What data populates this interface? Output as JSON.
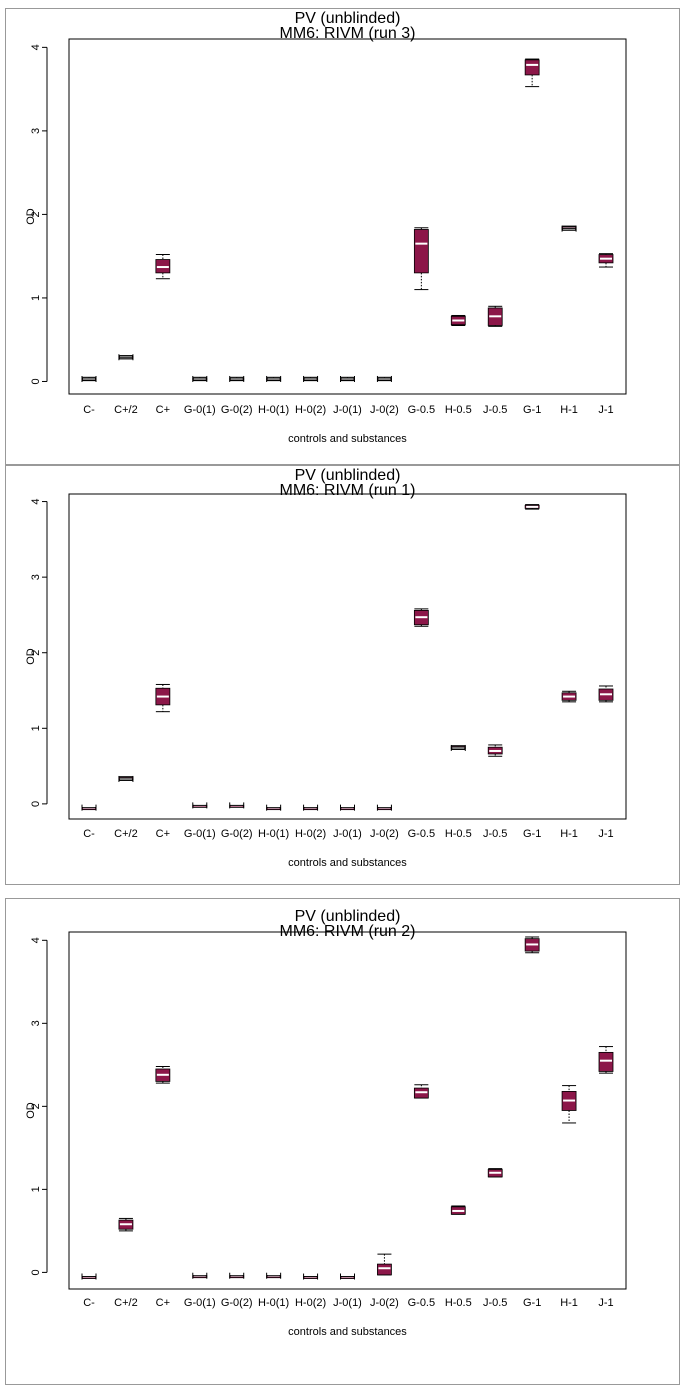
{
  "chart_data": [
    {
      "type": "box",
      "title": "PV (unblinded)",
      "subtitle": "MM6: RIVM (run 3)",
      "xlabel": "controls and substances",
      "ylabel": "OD",
      "ylim": [
        -0.15,
        4.1
      ],
      "yticks": [
        0,
        1,
        2,
        3,
        4
      ],
      "grid": false,
      "categories": [
        "C-",
        "C+/2",
        "C+",
        "G-0(1)",
        "G-0(2)",
        "H-0(1)",
        "H-0(2)",
        "J-0(1)",
        "J-0(2)",
        "G-0.5",
        "H-0.5",
        "J-0.5",
        "G-1",
        "H-1",
        "J-1"
      ],
      "boxes": [
        {
          "min": 0.01,
          "q1": 0.02,
          "median": 0.03,
          "q3": 0.04,
          "max": 0.05
        },
        {
          "min": 0.27,
          "q1": 0.28,
          "median": 0.29,
          "q3": 0.3,
          "max": 0.31
        },
        {
          "min": 1.23,
          "q1": 1.3,
          "median": 1.37,
          "q3": 1.46,
          "max": 1.52
        },
        {
          "min": 0.01,
          "q1": 0.02,
          "median": 0.03,
          "q3": 0.04,
          "max": 0.05
        },
        {
          "min": 0.01,
          "q1": 0.02,
          "median": 0.03,
          "q3": 0.04,
          "max": 0.05
        },
        {
          "min": 0.01,
          "q1": 0.02,
          "median": 0.03,
          "q3": 0.04,
          "max": 0.05
        },
        {
          "min": 0.01,
          "q1": 0.02,
          "median": 0.03,
          "q3": 0.04,
          "max": 0.05
        },
        {
          "min": 0.01,
          "q1": 0.02,
          "median": 0.03,
          "q3": 0.04,
          "max": 0.05
        },
        {
          "min": 0.01,
          "q1": 0.02,
          "median": 0.03,
          "q3": 0.04,
          "max": 0.05
        },
        {
          "min": 1.1,
          "q1": 1.3,
          "median": 1.65,
          "q3": 1.82,
          "max": 1.84
        },
        {
          "min": 0.67,
          "q1": 0.68,
          "median": 0.73,
          "q3": 0.78,
          "max": 0.79
        },
        {
          "min": 0.66,
          "q1": 0.67,
          "median": 0.78,
          "q3": 0.88,
          "max": 0.9
        },
        {
          "min": 3.53,
          "q1": 3.67,
          "median": 3.79,
          "q3": 3.85,
          "max": 3.86
        },
        {
          "min": 1.81,
          "q1": 1.82,
          "median": 1.83,
          "q3": 1.85,
          "max": 1.86
        },
        {
          "min": 1.37,
          "q1": 1.42,
          "median": 1.47,
          "q3": 1.52,
          "max": 1.53
        }
      ]
    },
    {
      "type": "box",
      "title": "PV (unblinded)",
      "subtitle": "MM6: RIVM (run 1)",
      "xlabel": "controls and substances",
      "ylabel": "OD",
      "ylim": [
        -0.2,
        4.1
      ],
      "yticks": [
        0,
        1,
        2,
        3,
        4
      ],
      "grid": false,
      "categories": [
        "C-",
        "C+/2",
        "C+",
        "G-0(1)",
        "G-0(2)",
        "H-0(1)",
        "H-0(2)",
        "J-0(1)",
        "J-0(2)",
        "G-0.5",
        "H-0.5",
        "J-0.5",
        "G-1",
        "H-1",
        "J-1"
      ],
      "boxes": [
        {
          "min": -0.05,
          "q1": -0.05,
          "median": -0.05,
          "q3": -0.05,
          "max": -0.05
        },
        {
          "min": 0.31,
          "q1": 0.32,
          "median": 0.33,
          "q3": 0.35,
          "max": 0.36
        },
        {
          "min": 1.22,
          "q1": 1.31,
          "median": 1.42,
          "q3": 1.53,
          "max": 1.58
        },
        {
          "min": -0.02,
          "q1": -0.02,
          "median": -0.02,
          "q3": -0.02,
          "max": -0.02
        },
        {
          "min": -0.02,
          "q1": -0.02,
          "median": -0.02,
          "q3": -0.02,
          "max": -0.02
        },
        {
          "min": -0.05,
          "q1": -0.05,
          "median": -0.05,
          "q3": -0.05,
          "max": -0.05
        },
        {
          "min": -0.05,
          "q1": -0.05,
          "median": -0.05,
          "q3": -0.05,
          "max": -0.05
        },
        {
          "min": -0.05,
          "q1": -0.05,
          "median": -0.05,
          "q3": -0.05,
          "max": -0.05
        },
        {
          "min": -0.05,
          "q1": -0.05,
          "median": -0.05,
          "q3": -0.05,
          "max": -0.05
        },
        {
          "min": 2.35,
          "q1": 2.37,
          "median": 2.47,
          "q3": 2.56,
          "max": 2.58
        },
        {
          "min": 0.72,
          "q1": 0.73,
          "median": 0.74,
          "q3": 0.76,
          "max": 0.77
        },
        {
          "min": 0.63,
          "q1": 0.66,
          "median": 0.7,
          "q3": 0.75,
          "max": 0.78
        },
        {
          "min": 3.9,
          "q1": 3.91,
          "median": 3.93,
          "q3": 3.95,
          "max": 3.96
        },
        {
          "min": 1.35,
          "q1": 1.37,
          "median": 1.42,
          "q3": 1.47,
          "max": 1.49
        },
        {
          "min": 1.35,
          "q1": 1.37,
          "median": 1.45,
          "q3": 1.52,
          "max": 1.56
        }
      ]
    },
    {
      "type": "box",
      "title": "PV (unblinded)",
      "subtitle": "MM6: RIVM (run 2)",
      "xlabel": "controls and substances",
      "ylabel": "OD",
      "ylim": [
        -0.2,
        4.1
      ],
      "yticks": [
        0,
        1,
        2,
        3,
        4
      ],
      "grid": false,
      "categories": [
        "C-",
        "C+/2",
        "C+",
        "G-0(1)",
        "G-0(2)",
        "H-0(1)",
        "H-0(2)",
        "J-0(1)",
        "J-0(2)",
        "G-0.5",
        "H-0.5",
        "J-0.5",
        "G-1",
        "H-1",
        "J-1"
      ],
      "boxes": [
        {
          "min": -0.05,
          "q1": -0.05,
          "median": -0.05,
          "q3": -0.05,
          "max": -0.05
        },
        {
          "min": 0.5,
          "q1": 0.52,
          "median": 0.58,
          "q3": 0.63,
          "max": 0.65
        },
        {
          "min": 2.28,
          "q1": 2.3,
          "median": 2.38,
          "q3": 2.45,
          "max": 2.48
        },
        {
          "min": -0.04,
          "q1": -0.04,
          "median": -0.04,
          "q3": -0.04,
          "max": -0.04
        },
        {
          "min": -0.04,
          "q1": -0.04,
          "median": -0.04,
          "q3": -0.04,
          "max": -0.04
        },
        {
          "min": -0.04,
          "q1": -0.04,
          "median": -0.04,
          "q3": -0.04,
          "max": -0.04
        },
        {
          "min": -0.05,
          "q1": -0.05,
          "median": -0.05,
          "q3": -0.05,
          "max": -0.05
        },
        {
          "min": -0.05,
          "q1": -0.05,
          "median": -0.05,
          "q3": -0.05,
          "max": -0.05
        },
        {
          "min": -0.03,
          "q1": -0.03,
          "median": 0.05,
          "q3": 0.1,
          "max": 0.22
        },
        {
          "min": 2.1,
          "q1": 2.1,
          "median": 2.17,
          "q3": 2.22,
          "max": 2.26
        },
        {
          "min": 0.7,
          "q1": 0.7,
          "median": 0.74,
          "q3": 0.79,
          "max": 0.8
        },
        {
          "min": 1.15,
          "q1": 1.15,
          "median": 1.2,
          "q3": 1.24,
          "max": 1.25
        },
        {
          "min": 3.85,
          "q1": 3.87,
          "median": 3.95,
          "q3": 4.02,
          "max": 4.04
        },
        {
          "min": 1.8,
          "q1": 1.95,
          "median": 2.07,
          "q3": 2.18,
          "max": 2.25
        },
        {
          "min": 2.4,
          "q1": 2.42,
          "median": 2.55,
          "q3": 2.65,
          "max": 2.72
        }
      ]
    }
  ],
  "colors": {
    "box_fill": "#8c1749",
    "median": "#ffffff",
    "stroke": "#000000"
  }
}
